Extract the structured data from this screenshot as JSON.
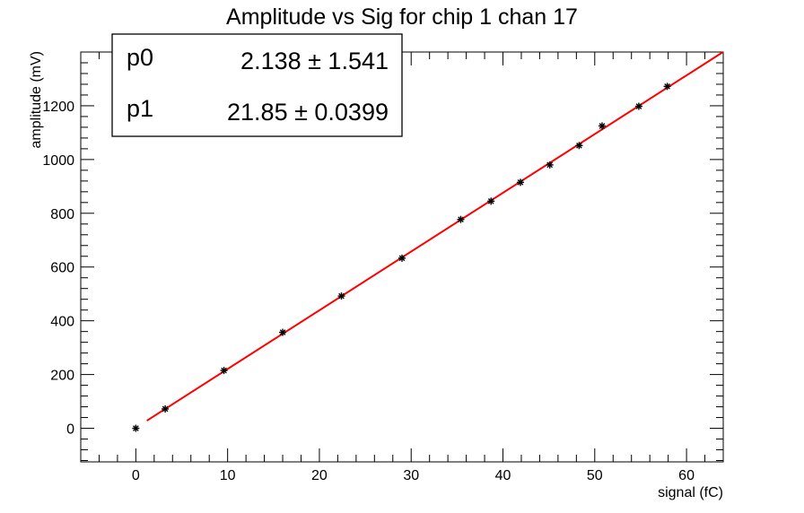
{
  "chart_data": {
    "type": "scatter",
    "title": "Amplitude vs Sig for chip 1 chan 17",
    "xlabel": "signal (fC)",
    "ylabel": "amplitude (mV)",
    "xlim": [
      -6,
      64
    ],
    "ylim": [
      -125,
      1400
    ],
    "x_ticks": [
      0,
      10,
      20,
      30,
      40,
      50,
      60
    ],
    "y_ticks": [
      0,
      200,
      400,
      600,
      800,
      1000,
      1200
    ],
    "grid": false,
    "marker": "asterisk",
    "points": [
      {
        "x": 0,
        "y": 0
      },
      {
        "x": 3.2,
        "y": 72
      },
      {
        "x": 9.6,
        "y": 215
      },
      {
        "x": 16.0,
        "y": 357
      },
      {
        "x": 22.4,
        "y": 492
      },
      {
        "x": 29.0,
        "y": 633
      },
      {
        "x": 35.4,
        "y": 777
      },
      {
        "x": 38.7,
        "y": 845
      },
      {
        "x": 41.9,
        "y": 915
      },
      {
        "x": 45.1,
        "y": 980
      },
      {
        "x": 48.3,
        "y": 1052
      },
      {
        "x": 50.8,
        "y": 1125
      },
      {
        "x": 54.8,
        "y": 1198
      },
      {
        "x": 57.9,
        "y": 1272
      }
    ],
    "fit": {
      "function": "p0 + p1*x",
      "color": "#ff0000",
      "x_range": [
        1.2,
        64
      ],
      "p0": 2.138,
      "p1": 21.85
    },
    "stats_box": {
      "placement": "top-left",
      "rows": [
        {
          "name": "p0",
          "value": "2.138",
          "error": "1.541"
        },
        {
          "name": "p1",
          "value": "21.85",
          "error": "0.0399"
        }
      ],
      "pm_symbol": "±"
    }
  }
}
